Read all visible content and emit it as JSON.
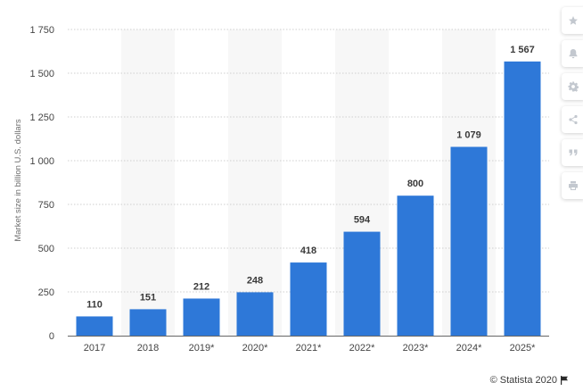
{
  "chart_data": {
    "type": "bar",
    "categories": [
      "2017",
      "2018",
      "2019*",
      "2020*",
      "2021*",
      "2022*",
      "2023*",
      "2024*",
      "2025*"
    ],
    "values": [
      110,
      151,
      212,
      248,
      418,
      594,
      800,
      1079,
      1567
    ],
    "value_labels": [
      "110",
      "151",
      "212",
      "248",
      "418",
      "594",
      "800",
      "1 079",
      "1 567"
    ],
    "ylabel": "Market size in billion U.S. dollars",
    "ylim": [
      0,
      1750
    ],
    "yticks": [
      0,
      250,
      500,
      750,
      1000,
      1250,
      1500,
      1750
    ],
    "ytick_labels": [
      "0",
      "250",
      "500",
      "750",
      "1 000",
      "1 250",
      "1 500",
      "1 750"
    ],
    "grid": true,
    "bar_color": "#2e78d8",
    "alt_band_color": "#f7f7f7"
  },
  "toolbar": {
    "items": [
      {
        "name": "favorite",
        "icon": "star-icon"
      },
      {
        "name": "notify",
        "icon": "bell-icon"
      },
      {
        "name": "settings",
        "icon": "gear-icon"
      },
      {
        "name": "share",
        "icon": "share-icon"
      },
      {
        "name": "cite",
        "icon": "quote-icon"
      },
      {
        "name": "print",
        "icon": "print-icon"
      }
    ],
    "icon_color": "#c3c8cf"
  },
  "credit": {
    "text": "© Statista 2020",
    "icon": "flag-icon"
  }
}
